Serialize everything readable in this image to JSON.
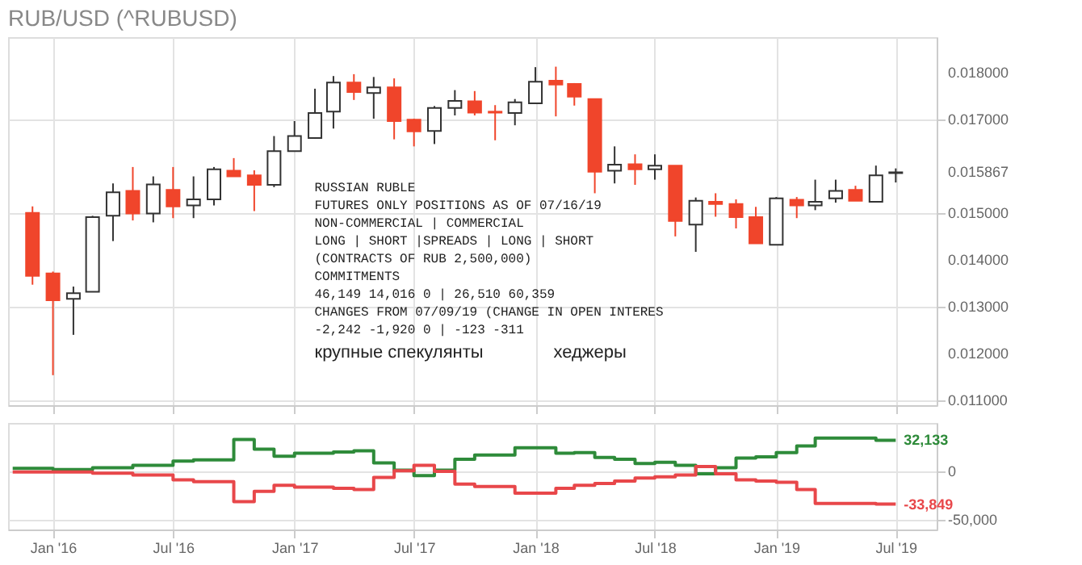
{
  "chart_data": [
    {
      "type": "candlestick",
      "title": "RUB/USD (^RUBUSD)",
      "x": [
        "2015-12",
        "2016-01",
        "2016-02",
        "2016-03",
        "2016-04",
        "2016-05",
        "2016-06",
        "2016-07",
        "2016-08",
        "2016-09",
        "2016-10",
        "2016-11",
        "2016-12",
        "2017-01",
        "2017-02",
        "2017-03",
        "2017-04",
        "2017-05",
        "2017-06",
        "2017-07",
        "2017-08",
        "2017-09",
        "2017-10",
        "2017-11",
        "2017-12",
        "2018-01",
        "2018-02",
        "2018-03",
        "2018-04",
        "2018-05",
        "2018-06",
        "2018-07",
        "2018-08",
        "2018-09",
        "2018-10",
        "2018-11",
        "2018-12",
        "2019-01",
        "2019-02",
        "2019-03",
        "2019-04",
        "2019-05",
        "2019-06",
        "2019-07"
      ],
      "ohlc": [
        [
          0.015,
          0.01514,
          0.01347,
          0.01366
        ],
        [
          0.01371,
          0.01375,
          0.01154,
          0.01314
        ],
        [
          0.01317,
          0.01343,
          0.0124,
          0.01329
        ],
        [
          0.01332,
          0.01494,
          0.01332,
          0.01491
        ],
        [
          0.01494,
          0.01563,
          0.0144,
          0.01544
        ],
        [
          0.01547,
          0.01598,
          0.01484,
          0.01499
        ],
        [
          0.01499,
          0.01578,
          0.0148,
          0.01561
        ],
        [
          0.01549,
          0.01598,
          0.01489,
          0.01514
        ],
        [
          0.01516,
          0.01578,
          0.01489,
          0.01529
        ],
        [
          0.01529,
          0.01598,
          0.01516,
          0.01593
        ],
        [
          0.0159,
          0.01617,
          0.01578,
          0.01578
        ],
        [
          0.0158,
          0.01591,
          0.01504,
          0.0156
        ],
        [
          0.0156,
          0.01664,
          0.01555,
          0.01632
        ],
        [
          0.01632,
          0.01696,
          0.01632,
          0.01664
        ],
        [
          0.0166,
          0.01765,
          0.01658,
          0.01713
        ],
        [
          0.01716,
          0.01792,
          0.0168,
          0.01778
        ],
        [
          0.01778,
          0.01796,
          0.01741,
          0.01758
        ],
        [
          0.01756,
          0.0179,
          0.01701,
          0.01768
        ],
        [
          0.01768,
          0.01787,
          0.01657,
          0.01696
        ],
        [
          0.01699,
          0.01701,
          0.01642,
          0.01674
        ],
        [
          0.01675,
          0.01728,
          0.01647,
          0.01724
        ],
        [
          0.01724,
          0.01762,
          0.01708,
          0.01739
        ],
        [
          0.01738,
          0.0176,
          0.01708,
          0.01714
        ],
        [
          0.01716,
          0.0173,
          0.01655,
          0.01714
        ],
        [
          0.01713,
          0.01743,
          0.01687,
          0.01736
        ],
        [
          0.01734,
          0.01811,
          0.01734,
          0.0178
        ],
        [
          0.01782,
          0.01812,
          0.01706,
          0.01774
        ],
        [
          0.01775,
          0.01777,
          0.01729,
          0.01748
        ],
        [
          0.01743,
          0.01743,
          0.01542,
          0.01588
        ],
        [
          0.0159,
          0.01642,
          0.01563,
          0.01603
        ],
        [
          0.01604,
          0.01625,
          0.0156,
          0.01593
        ],
        [
          0.01593,
          0.01625,
          0.01571,
          0.01601
        ],
        [
          0.01601,
          0.01601,
          0.0145,
          0.01483
        ],
        [
          0.01475,
          0.01533,
          0.01417,
          0.01526
        ],
        [
          0.01524,
          0.01542,
          0.01492,
          0.01519
        ],
        [
          0.01519,
          0.01529,
          0.01467,
          0.01491
        ],
        [
          0.01491,
          0.01513,
          0.01435,
          0.01435
        ],
        [
          0.01432,
          0.01534,
          0.01432,
          0.01531
        ],
        [
          0.01528,
          0.01534,
          0.01489,
          0.01516
        ],
        [
          0.01516,
          0.01571,
          0.01506,
          0.01524
        ],
        [
          0.01531,
          0.01571,
          0.01522,
          0.01547
        ],
        [
          0.01549,
          0.01558,
          0.01526,
          0.01526
        ],
        [
          0.01524,
          0.01601,
          0.01524,
          0.0158
        ],
        [
          0.01585,
          0.01595,
          0.01565,
          0.015867
        ]
      ],
      "colors": [
        "#f0452b",
        "#f0452b",
        "#ffffff",
        "#ffffff",
        "#ffffff",
        "#f0452b",
        "#ffffff",
        "#f0452b",
        "#ffffff",
        "#ffffff",
        "#f0452b",
        "#f0452b",
        "#ffffff",
        "#ffffff",
        "#ffffff",
        "#ffffff",
        "#f0452b",
        "#ffffff",
        "#f0452b",
        "#f0452b",
        "#ffffff",
        "#ffffff",
        "#f0452b",
        "#f0452b",
        "#ffffff",
        "#ffffff",
        "#f0452b",
        "#f0452b",
        "#f0452b",
        "#ffffff",
        "#f0452b",
        "#ffffff",
        "#f0452b",
        "#ffffff",
        "#f0452b",
        "#f0452b",
        "#f0452b",
        "#ffffff",
        "#f0452b",
        "#ffffff",
        "#ffffff",
        "#f0452b",
        "#ffffff",
        "#ffffff"
      ],
      "xlim": [
        "2015-10-25",
        "2019-09-01"
      ],
      "xticks": [
        {
          "value": "2016-01",
          "label": null
        },
        {
          "value": "2016-07",
          "label": null
        },
        {
          "value": "2017-01",
          "label": null
        },
        {
          "value": "2017-07",
          "label": null
        },
        {
          "value": "2018-01",
          "label": null
        },
        {
          "value": "2018-07",
          "label": null
        },
        {
          "value": "2019-01",
          "label": null
        },
        {
          "value": "2019-07",
          "label": null
        }
      ],
      "ylim": [
        0.0109,
        0.01875
      ],
      "yticks": [
        {
          "value": 0.011,
          "label": "0.011000"
        },
        {
          "value": 0.012,
          "label": "0.012000"
        },
        {
          "value": 0.013,
          "label": "0.013000"
        },
        {
          "value": 0.014,
          "label": "0.014000"
        },
        {
          "value": 0.015,
          "label": "0.015000"
        },
        {
          "value": 0.015867,
          "label": "0.015867"
        },
        {
          "value": 0.017,
          "label": "0.017000"
        },
        {
          "value": 0.018,
          "label": "0.018000"
        }
      ],
      "tick_labels": "y",
      "grid": true,
      "annotations": [
        "RUSSIAN RUBLE",
        "FUTURES ONLY POSITIONS AS OF 07/16/19",
        "     NON-COMMERCIAL       |    COMMERCIAL",
        "  LONG  | SHORT  |SPREADS |  LONG  | SHORT",
        "(CONTRACTS OF RUB 2,500,000)",
        "COMMITMENTS",
        " 46,149   14,016        0 | 26,510   60,359",
        "CHANGES FROM 07/09/19 (CHANGE IN OPEN INTERES",
        " -2,242   -1,920        0 |   -123     -311",
        "крупные спекулянты",
        "хеджеры"
      ]
    },
    {
      "type": "step",
      "series": [
        {
          "color": "#2e8b3a",
          "x": [
            "2015-11",
            "2016-01",
            "2016-03",
            "2016-05",
            "2016-07",
            "2016-08",
            "2016-10",
            "2016-11",
            "2016-12",
            "2017-01",
            "2017-03",
            "2017-04",
            "2017-05",
            "2017-06",
            "2017-07",
            "2017-08",
            "2017-09",
            "2017-10",
            "2017-12",
            "2018-02",
            "2018-03",
            "2018-04",
            "2018-05",
            "2018-06",
            "2018-07",
            "2018-08",
            "2018-09",
            "2018-10",
            "2018-11",
            "2018-12",
            "2019-01",
            "2019-02",
            "2019-03",
            "2019-06",
            "2019-07"
          ],
          "values": [
            3100,
            1900,
            3750,
            6250,
            10600,
            11900,
            33000,
            23000,
            15600,
            18750,
            20000,
            21250,
            8750,
            1250,
            -4400,
            1250,
            12500,
            16900,
            24400,
            18750,
            19400,
            14400,
            12500,
            8100,
            9400,
            6250,
            -2500,
            3750,
            13750,
            15000,
            19400,
            26250,
            34400,
            32133,
            32133
          ]
        },
        {
          "color": "#e8474a",
          "x": [
            "2015-11",
            "2016-01",
            "2016-03",
            "2016-05",
            "2016-07",
            "2016-08",
            "2016-10",
            "2016-11",
            "2016-12",
            "2017-01",
            "2017-03",
            "2017-04",
            "2017-05",
            "2017-06",
            "2017-07",
            "2017-08",
            "2017-09",
            "2017-10",
            "2017-12",
            "2018-02",
            "2018-03",
            "2018-04",
            "2018-05",
            "2018-06",
            "2018-07",
            "2018-08",
            "2018-09",
            "2018-10",
            "2018-11",
            "2018-12",
            "2019-01",
            "2019-02",
            "2019-03",
            "2019-06",
            "2019-07"
          ],
          "values": [
            -600,
            -600,
            -1900,
            -3750,
            -8750,
            -10600,
            -31250,
            -20600,
            -14400,
            -16250,
            -17500,
            -18750,
            -6250,
            625,
            6250,
            0,
            -13100,
            -15600,
            -22500,
            -17500,
            -14400,
            -12500,
            -10000,
            -6900,
            -5600,
            -3750,
            5000,
            -2500,
            -8750,
            -10000,
            -11250,
            -18750,
            -33125,
            -33849,
            -33849
          ]
        }
      ],
      "xlim": [
        "2015-10-25",
        "2019-09-01"
      ],
      "xticks": [
        {
          "value": "2016-01",
          "label": "Jan '16"
        },
        {
          "value": "2016-07",
          "label": "Jul '16"
        },
        {
          "value": "2017-01",
          "label": "Jan '17"
        },
        {
          "value": "2017-07",
          "label": "Jul '17"
        },
        {
          "value": "2018-01",
          "label": "Jan '18"
        },
        {
          "value": "2018-07",
          "label": "Jul '18"
        },
        {
          "value": "2019-01",
          "label": "Jan '19"
        },
        {
          "value": "2019-07",
          "label": "Jul '19"
        }
      ],
      "ylim": [
        -60000,
        50000
      ],
      "yticks": [
        {
          "value": -50000,
          "label": "-50,000"
        },
        {
          "value": 0,
          "label": "0"
        }
      ],
      "grid": true,
      "annotations": [
        {
          "text": "32,133",
          "x": "2019-07",
          "y": 32133
        },
        {
          "text": "-33,849",
          "x": "2019-07",
          "y": -33849
        }
      ]
    }
  ]
}
